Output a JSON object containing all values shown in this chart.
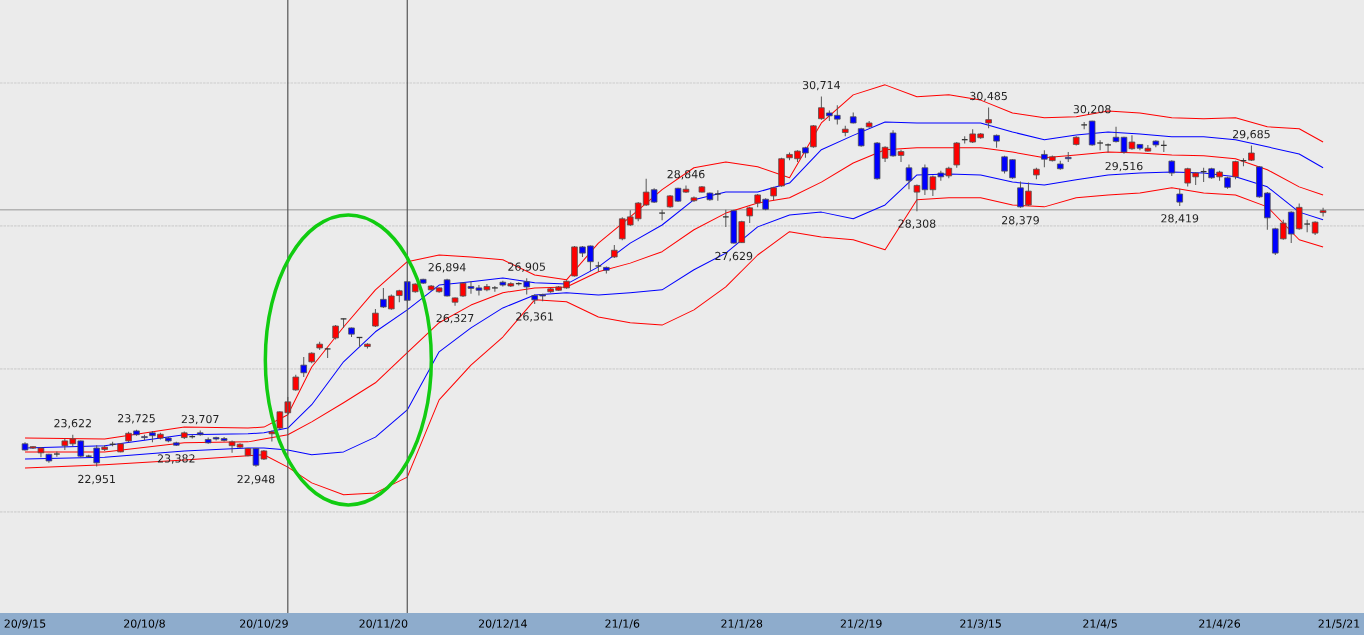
{
  "chart_data": {
    "type": "candlestick",
    "categories": [
      "20/9/15",
      null,
      null,
      null,
      null,
      null,
      null,
      null,
      null,
      null,
      null,
      null,
      null,
      null,
      null,
      "20/10/8",
      null,
      null,
      null,
      null,
      null,
      null,
      null,
      null,
      null,
      null,
      null,
      null,
      null,
      null,
      "20/10/29",
      null,
      null,
      null,
      null,
      null,
      null,
      null,
      null,
      null,
      null,
      null,
      null,
      null,
      null,
      "20/11/20",
      null,
      null,
      null,
      null,
      null,
      null,
      null,
      null,
      null,
      null,
      null,
      null,
      null,
      null,
      "20/12/14",
      null,
      null,
      null,
      null,
      null,
      null,
      null,
      null,
      null,
      null,
      null,
      null,
      null,
      null,
      "21/1/6",
      null,
      null,
      null,
      null,
      null,
      null,
      null,
      null,
      null,
      null,
      null,
      null,
      null,
      null,
      "21/1/28",
      null,
      null,
      null,
      null,
      null,
      null,
      null,
      null,
      null,
      null,
      null,
      null,
      null,
      null,
      "21/2/19",
      null,
      null,
      null,
      null,
      null,
      null,
      null,
      null,
      null,
      null,
      null,
      null,
      null,
      null,
      "21/3/15",
      null,
      null,
      null,
      null,
      null,
      null,
      null,
      null,
      null,
      null,
      null,
      null,
      null,
      null,
      "21/4/5",
      null,
      null,
      null,
      null,
      null,
      null,
      null,
      null,
      null,
      null,
      null,
      null,
      null,
      null,
      "21/4/26",
      null,
      null,
      null,
      null,
      null,
      null,
      null,
      null,
      null,
      null,
      null,
      null,
      null,
      null,
      "21/5/21"
    ],
    "ohlc": [
      [
        23430,
        23460,
        23290,
        23300
      ],
      [
        23340,
        23380,
        23320,
        23370
      ],
      [
        23240,
        23360,
        23150,
        23340
      ],
      [
        23210,
        23220,
        23030,
        23070
      ],
      [
        23215,
        23270,
        23160,
        23215
      ],
      [
        23390,
        23540,
        23300,
        23490
      ],
      [
        23430,
        23622,
        23380,
        23530
      ],
      [
        23490,
        23500,
        23150,
        23170
      ],
      [
        23170,
        23200,
        23150,
        23170
      ],
      [
        23340,
        23400,
        22951,
        23030
      ],
      [
        23310,
        23400,
        23280,
        23360
      ],
      [
        23420,
        23470,
        23380,
        23420
      ],
      [
        23260,
        23440,
        23250,
        23430
      ],
      [
        23490,
        23680,
        23460,
        23650
      ],
      [
        23700,
        23725,
        23600,
        23620
      ],
      [
        23580,
        23620,
        23510,
        23560
      ],
      [
        23660,
        23700,
        23460,
        23600
      ],
      [
        23550,
        23660,
        23520,
        23630
      ],
      [
        23550,
        23570,
        23460,
        23490
      ],
      [
        23450,
        23470,
        23382,
        23400
      ],
      [
        23560,
        23690,
        23530,
        23660
      ],
      [
        23580,
        23620,
        23540,
        23580
      ],
      [
        23660,
        23707,
        23600,
        23620
      ],
      [
        23520,
        23560,
        23430,
        23450
      ],
      [
        23560,
        23580,
        23500,
        23530
      ],
      [
        23540,
        23570,
        23480,
        23500
      ],
      [
        23390,
        23500,
        23240,
        23470
      ],
      [
        23360,
        23440,
        23330,
        23420
      ],
      [
        23180,
        23340,
        23170,
        23330
      ],
      [
        23330,
        23340,
        22948,
        22980
      ],
      [
        23110,
        23300,
        23090,
        23280
      ],
      [
        23640,
        23710,
        23480,
        23680
      ],
      [
        23760,
        24110,
        23740,
        24100
      ],
      [
        24080,
        24410,
        24060,
        24310
      ],
      [
        24560,
        24880,
        24540,
        24830
      ],
      [
        25080,
        25250,
        24830,
        24920
      ],
      [
        25150,
        25350,
        25120,
        25330
      ],
      [
        25440,
        25570,
        25400,
        25520
      ],
      [
        25420,
        25440,
        25230,
        25420
      ],
      [
        25650,
        25920,
        25620,
        25900
      ],
      [
        26050,
        26060,
        25860,
        26050
      ],
      [
        25860,
        25870,
        25670,
        25730
      ],
      [
        25660,
        25670,
        25460,
        25660
      ],
      [
        25470,
        25540,
        25430,
        25520
      ],
      [
        25900,
        26260,
        25880,
        26170
      ],
      [
        26460,
        26700,
        26280,
        26300
      ],
      [
        26260,
        26560,
        26240,
        26530
      ],
      [
        26540,
        26660,
        26400,
        26640
      ],
      [
        26830,
        26850,
        26420,
        26440
      ],
      [
        26620,
        26800,
        26600,
        26780
      ],
      [
        26880,
        26890,
        26780,
        26800
      ],
      [
        26660,
        26760,
        26640,
        26740
      ],
      [
        26620,
        26710,
        26600,
        26700
      ],
      [
        26870,
        26894,
        26520,
        26530
      ],
      [
        26400,
        26500,
        26327,
        26490
      ],
      [
        26530,
        26820,
        26510,
        26800
      ],
      [
        26730,
        26840,
        26580,
        26690
      ],
      [
        26700,
        26760,
        26540,
        26650
      ],
      [
        26660,
        26780,
        26630,
        26730
      ],
      [
        26700,
        26740,
        26620,
        26700
      ],
      [
        26820,
        26850,
        26730,
        26760
      ],
      [
        26740,
        26820,
        26720,
        26790
      ],
      [
        26790,
        26820,
        26750,
        26790
      ],
      [
        26830,
        26905,
        26560,
        26720
      ],
      [
        26540,
        26560,
        26361,
        26450
      ],
      [
        26560,
        26580,
        26420,
        26530
      ],
      [
        26620,
        26700,
        26600,
        26680
      ],
      [
        26650,
        26740,
        26640,
        26720
      ],
      [
        26700,
        26860,
        26680,
        26840
      ],
      [
        26950,
        27580,
        26940,
        27560
      ],
      [
        27560,
        27580,
        27350,
        27430
      ],
      [
        27580,
        27590,
        27050,
        27250
      ],
      [
        27160,
        27250,
        27040,
        27160
      ],
      [
        27130,
        27150,
        27000,
        27070
      ],
      [
        27350,
        27600,
        27330,
        27490
      ],
      [
        27730,
        28180,
        27700,
        28150
      ],
      [
        28020,
        28330,
        28000,
        28190
      ],
      [
        28150,
        28500,
        28100,
        28480
      ],
      [
        28440,
        28990,
        28420,
        28710
      ],
      [
        28760,
        28790,
        28480,
        28500
      ],
      [
        28270,
        28340,
        28120,
        28270
      ],
      [
        28400,
        28650,
        28380,
        28630
      ],
      [
        28790,
        28800,
        28500,
        28520
      ],
      [
        28710,
        28846,
        28690,
        28770
      ],
      [
        28530,
        28620,
        28500,
        28590
      ],
      [
        28710,
        28840,
        28700,
        28820
      ],
      [
        28690,
        28700,
        28530,
        28550
      ],
      [
        28670,
        28750,
        28530,
        28670
      ],
      [
        28190,
        28340,
        27980,
        28190
      ],
      [
        28320,
        28340,
        27629,
        27640
      ],
      [
        27650,
        28110,
        27640,
        28090
      ],
      [
        28210,
        28400,
        28060,
        28380
      ],
      [
        28480,
        28670,
        28390,
        28650
      ],
      [
        28560,
        28580,
        28330,
        28350
      ],
      [
        28630,
        28820,
        28540,
        28800
      ],
      [
        28840,
        29430,
        28820,
        29410
      ],
      [
        29430,
        29540,
        29380,
        29500
      ],
      [
        29410,
        29590,
        29340,
        29570
      ],
      [
        29640,
        29660,
        29430,
        29530
      ],
      [
        29660,
        30120,
        29640,
        30100
      ],
      [
        30250,
        30714,
        30230,
        30480
      ],
      [
        30370,
        30420,
        30200,
        30310
      ],
      [
        30320,
        30530,
        30130,
        30240
      ],
      [
        29960,
        30100,
        29880,
        30030
      ],
      [
        30290,
        30380,
        30150,
        30160
      ],
      [
        30040,
        30060,
        29660,
        29680
      ],
      [
        30080,
        30200,
        30060,
        30160
      ],
      [
        29740,
        29760,
        28970,
        28990
      ],
      [
        29420,
        29670,
        29340,
        29650
      ],
      [
        29950,
        30010,
        29450,
        29470
      ],
      [
        29480,
        29600,
        29340,
        29560
      ],
      [
        29220,
        29290,
        28770,
        28950
      ],
      [
        28710,
        28870,
        28308,
        28850
      ],
      [
        29220,
        29290,
        28650,
        28760
      ],
      [
        28760,
        29060,
        28630,
        29030
      ],
      [
        29110,
        29160,
        28950,
        29030
      ],
      [
        29050,
        29240,
        29000,
        29210
      ],
      [
        29280,
        29760,
        29220,
        29740
      ],
      [
        29810,
        29880,
        29730,
        29810
      ],
      [
        29760,
        30030,
        29740,
        29930
      ],
      [
        29850,
        29950,
        29830,
        29930
      ],
      [
        30160,
        30485,
        30050,
        30230
      ],
      [
        29900,
        29920,
        29640,
        29780
      ],
      [
        29450,
        29470,
        29100,
        29150
      ],
      [
        29390,
        29400,
        28990,
        29010
      ],
      [
        28800,
        28930,
        28379,
        28400
      ],
      [
        28440,
        28910,
        28420,
        28730
      ],
      [
        29070,
        29220,
        28980,
        29190
      ],
      [
        29500,
        29590,
        29230,
        29400
      ],
      [
        29370,
        29480,
        29350,
        29450
      ],
      [
        29300,
        29370,
        29180,
        29200
      ],
      [
        29440,
        29550,
        29340,
        29410
      ],
      [
        29710,
        29880,
        29690,
        29860
      ],
      [
        30120,
        30180,
        30030,
        30120
      ],
      [
        30200,
        30208,
        29680,
        29700
      ],
      [
        29740,
        29800,
        29590,
        29740
      ],
      [
        29700,
        29730,
        29540,
        29700
      ],
      [
        29860,
        30080,
        29750,
        29770
      ],
      [
        29860,
        29870,
        29516,
        29550
      ],
      [
        29620,
        29900,
        29600,
        29760
      ],
      [
        29710,
        29720,
        29590,
        29630
      ],
      [
        29570,
        29700,
        29560,
        29630
      ],
      [
        29780,
        29800,
        29650,
        29700
      ],
      [
        29690,
        29790,
        29550,
        29690
      ],
      [
        29360,
        29380,
        29050,
        29110
      ],
      [
        28670,
        28780,
        28419,
        28500
      ],
      [
        28900,
        29220,
        28830,
        29200
      ],
      [
        29030,
        29130,
        28860,
        29110
      ],
      [
        29140,
        29220,
        28920,
        29140
      ],
      [
        29200,
        29220,
        28990,
        29010
      ],
      [
        29030,
        29160,
        28950,
        29130
      ],
      [
        29010,
        29030,
        28780,
        28810
      ],
      [
        29030,
        29370,
        28980,
        29350
      ],
      [
        29370,
        29420,
        29250,
        29370
      ],
      [
        29380,
        29685,
        29360,
        29530
      ],
      [
        29240,
        29260,
        28590,
        28610
      ],
      [
        28690,
        28710,
        27920,
        28170
      ],
      [
        27940,
        27960,
        27390,
        27430
      ],
      [
        27730,
        28130,
        27710,
        28060
      ],
      [
        28290,
        28310,
        27640,
        27830
      ],
      [
        27940,
        28470,
        27920,
        28390
      ],
      [
        28040,
        28130,
        27870,
        28040
      ],
      [
        27850,
        28100,
        27810,
        28080
      ],
      [
        28280,
        28380,
        28200,
        28320
      ],
      null,
      null
    ],
    "colors": [
      "#0000ff",
      "#ff0000",
      "#ff0000",
      "#0000ff",
      "#333333",
      "#ff0000",
      "#ff0000",
      "#0000ff",
      "#333333",
      "#0000ff",
      "#ff0000",
      "#333333",
      "#ff0000",
      "#ff0000",
      "#0000ff",
      "#0000ff",
      "#0000ff",
      "#ff0000",
      "#0000ff",
      "#0000ff",
      "#ff0000",
      "#333333",
      "#0000ff",
      "#0000ff",
      "#0000ff",
      "#0000ff",
      "#ff0000",
      "#ff0000",
      "#ff0000",
      "#0000ff",
      "#ff0000",
      "#ff0000",
      "#ff0000",
      "#ff0000",
      "#ff0000",
      "#0000ff",
      "#ff0000",
      "#ff0000",
      "#333333",
      "#ff0000",
      "#333333",
      "#0000ff",
      "#333333",
      "#ff0000",
      "#ff0000",
      "#0000ff",
      "#ff0000",
      "#ff0000",
      "#0000ff",
      "#ff0000",
      "#0000ff",
      "#ff0000",
      "#ff0000",
      "#0000ff",
      "#ff0000",
      "#ff0000",
      "#0000ff",
      "#0000ff",
      "#ff0000",
      "#333333",
      "#0000ff",
      "#ff0000",
      "#333333",
      "#0000ff",
      "#0000ff",
      "#0000ff",
      "#ff0000",
      "#ff0000",
      "#ff0000",
      "#ff0000",
      "#0000ff",
      "#0000ff",
      "#333333",
      "#0000ff",
      "#ff0000",
      "#ff0000",
      "#ff0000",
      "#ff0000",
      "#ff0000",
      "#0000ff",
      "#333333",
      "#ff0000",
      "#0000ff",
      "#ff0000",
      "#ff0000",
      "#ff0000",
      "#0000ff",
      "#333333",
      "#333333",
      "#0000ff",
      "#ff0000",
      "#ff0000",
      "#ff0000",
      "#0000ff",
      "#ff0000",
      "#ff0000",
      "#ff0000",
      "#ff0000",
      "#0000ff",
      "#ff0000",
      "#ff0000",
      "#0000ff",
      "#0000ff",
      "#ff0000",
      "#0000ff",
      "#0000ff",
      "#ff0000",
      "#0000ff",
      "#ff0000",
      "#0000ff",
      "#ff0000",
      "#0000ff",
      "#ff0000",
      "#0000ff",
      "#ff0000",
      "#0000ff",
      "#ff0000",
      "#ff0000",
      "#333333",
      "#ff0000",
      "#ff0000",
      "#ff0000",
      "#0000ff",
      "#0000ff",
      "#0000ff",
      "#0000ff",
      "#ff0000",
      "#ff0000",
      "#0000ff",
      "#ff0000",
      "#0000ff",
      "#0000ff",
      "#ff0000",
      "#333333",
      "#0000ff",
      "#333333",
      "#333333",
      "#0000ff",
      "#0000ff",
      "#ff0000",
      "#0000ff",
      "#ff0000",
      "#0000ff",
      "#333333",
      "#0000ff",
      "#0000ff",
      "#ff0000",
      "#ff0000",
      "#333333",
      "#0000ff",
      "#ff0000",
      "#0000ff",
      "#ff0000",
      "#333333",
      "#ff0000",
      "#0000ff",
      "#0000ff",
      "#0000ff",
      "#ff0000",
      "#0000ff",
      "#ff0000",
      "#333333",
      "#ff0000",
      "#ff0000",
      null,
      null
    ],
    "series": [
      {
        "type": "line",
        "color": "#ff0000",
        "values": [
          23550,
          null,
          null,
          null,
          null,
          null,
          null,
          null,
          null,
          null,
          23530,
          null,
          null,
          null,
          null,
          null,
          null,
          null,
          null,
          null,
          23780,
          null,
          null,
          null,
          null,
          null,
          null,
          null,
          23760,
          null,
          23780,
          null,
          null,
          24040,
          null,
          null,
          25040,
          null,
          null,
          null,
          25880,
          null,
          null,
          null,
          26660,
          null,
          null,
          null,
          27250,
          null,
          null,
          null,
          27390,
          null,
          null,
          null,
          27350,
          null,
          null,
          null,
          27290,
          null,
          null,
          null,
          26970,
          null,
          null,
          null,
          26870,
          null,
          null,
          null,
          27640,
          null,
          null,
          null,
          28190,
          null,
          null,
          null,
          28760,
          null,
          null,
          null,
          29220,
          null,
          null,
          null,
          29340,
          null,
          null,
          null,
          29240,
          null,
          null,
          null,
          29010,
          null,
          null,
          null,
          30160,
          null,
          null,
          null,
          30750,
          null,
          null,
          null,
          30960,
          null,
          null,
          null,
          30710,
          null,
          null,
          null,
          30750,
          null,
          null,
          null,
          30640,
          null,
          null,
          null,
          30370,
          null,
          null,
          null,
          30270,
          null,
          null,
          null,
          30290,
          null,
          null,
          null,
          30410,
          null,
          null,
          null,
          30370,
          null,
          null,
          null,
          30270,
          null,
          null,
          null,
          30250,
          null,
          null,
          null,
          30270,
          null,
          null,
          null,
          30080,
          null,
          null,
          null,
          30040,
          null,
          null,
          29760,
          null,
          null
        ]
      },
      {
        "type": "line",
        "color": "#0000ff",
        "values": [
          23340,
          null,
          null,
          null,
          null,
          null,
          null,
          null,
          null,
          null,
          23390,
          null,
          null,
          null,
          null,
          null,
          null,
          null,
          null,
          null,
          23620,
          null,
          null,
          null,
          null,
          null,
          null,
          null,
          23640,
          null,
          23660,
          null,
          null,
          23760,
          null,
          null,
          24250,
          null,
          null,
          null,
          25150,
          null,
          null,
          null,
          25780,
          null,
          null,
          null,
          26240,
          null,
          null,
          null,
          26760,
          null,
          null,
          null,
          26830,
          null,
          null,
          null,
          26910,
          null,
          null,
          null,
          26810,
          null,
          null,
          null,
          26780,
          null,
          null,
          null,
          27140,
          null,
          null,
          null,
          27640,
          null,
          null,
          null,
          28020,
          null,
          null,
          null,
          28550,
          null,
          null,
          null,
          28710,
          null,
          null,
          null,
          28710,
          null,
          null,
          null,
          28900,
          null,
          null,
          null,
          29600,
          null,
          null,
          null,
          29900,
          null,
          null,
          null,
          30180,
          null,
          null,
          null,
          30160,
          null,
          null,
          null,
          30160,
          null,
          null,
          null,
          30160,
          null,
          null,
          null,
          29970,
          null,
          null,
          null,
          29810,
          null,
          null,
          null,
          29910,
          null,
          null,
          null,
          29970,
          null,
          null,
          null,
          29930,
          null,
          null,
          null,
          29870,
          null,
          null,
          null,
          29870,
          null,
          null,
          null,
          29810,
          null,
          null,
          null,
          29660,
          null,
          null,
          null,
          29510,
          null,
          null,
          29220,
          null,
          null
        ]
      },
      {
        "type": "line",
        "color": "#ff0000",
        "values": [
          23260,
          null,
          null,
          null,
          null,
          null,
          null,
          null,
          null,
          null,
          23260,
          null,
          null,
          null,
          null,
          null,
          null,
          null,
          null,
          null,
          23450,
          null,
          null,
          null,
          null,
          null,
          null,
          null,
          23470,
          null,
          23530,
          null,
          null,
          23620,
          null,
          null,
          23890,
          null,
          null,
          null,
          24290,
          null,
          null,
          null,
          24710,
          null,
          null,
          null,
          25340,
          null,
          null,
          null,
          25970,
          null,
          null,
          null,
          26340,
          null,
          null,
          null,
          26600,
          null,
          null,
          null,
          26700,
          null,
          null,
          null,
          26720,
          null,
          null,
          null,
          27040,
          null,
          null,
          null,
          27220,
          null,
          null,
          null,
          27460,
          null,
          null,
          null,
          27920,
          null,
          null,
          null,
          28270,
          null,
          null,
          null,
          28480,
          null,
          null,
          null,
          28590,
          null,
          null,
          null,
          28920,
          null,
          null,
          null,
          29320,
          null,
          null,
          null,
          29600,
          null,
          null,
          null,
          29640,
          null,
          null,
          null,
          29640,
          null,
          null,
          null,
          29640,
          null,
          null,
          null,
          29550,
          null,
          null,
          null,
          29430,
          null,
          null,
          null,
          29490,
          null,
          null,
          null,
          29550,
          null,
          null,
          null,
          29530,
          null,
          null,
          null,
          29490,
          null,
          null,
          null,
          29470,
          null,
          null,
          null,
          29410,
          null,
          null,
          null,
          29180,
          null,
          null,
          null,
          28820,
          null,
          null,
          28650,
          null,
          null
        ]
      },
      {
        "type": "line",
        "color": "#0000ff",
        "values": [
          23110,
          null,
          null,
          null,
          null,
          null,
          null,
          null,
          null,
          null,
          23150,
          null,
          null,
          null,
          null,
          null,
          null,
          null,
          null,
          null,
          23280,
          null,
          null,
          null,
          null,
          null,
          null,
          null,
          23340,
          null,
          23340,
          null,
          null,
          23300,
          null,
          null,
          23200,
          null,
          null,
          null,
          23260,
          null,
          null,
          null,
          23570,
          null,
          null,
          null,
          24140,
          null,
          null,
          null,
          25360,
          null,
          null,
          null,
          25860,
          null,
          null,
          null,
          26280,
          null,
          null,
          null,
          26550,
          null,
          null,
          null,
          26600,
          null,
          null,
          null,
          26550,
          null,
          null,
          null,
          26600,
          null,
          null,
          null,
          26660,
          null,
          null,
          null,
          27080,
          null,
          null,
          null,
          27430,
          null,
          null,
          null,
          27980,
          null,
          null,
          null,
          28230,
          null,
          null,
          null,
          28290,
          null,
          null,
          null,
          28150,
          null,
          null,
          null,
          28440,
          null,
          null,
          null,
          29070,
          null,
          null,
          null,
          29090,
          null,
          null,
          null,
          29070,
          null,
          null,
          null,
          28920,
          null,
          null,
          null,
          28860,
          null,
          null,
          null,
          28970,
          null,
          null,
          null,
          29070,
          null,
          null,
          null,
          29110,
          null,
          null,
          null,
          29130,
          null,
          null,
          null,
          29110,
          null,
          null,
          null,
          29030,
          null,
          null,
          null,
          28820,
          null,
          null,
          null,
          28290,
          null,
          null,
          28130,
          null,
          null
        ]
      },
      {
        "type": "line",
        "color": "#ff0000",
        "values": [
          22920,
          null,
          null,
          null,
          null,
          null,
          null,
          null,
          null,
          null,
          22990,
          null,
          null,
          null,
          null,
          null,
          null,
          null,
          null,
          null,
          23090,
          null,
          null,
          null,
          null,
          null,
          null,
          null,
          23180,
          null,
          23200,
          null,
          null,
          22940,
          null,
          null,
          22610,
          null,
          null,
          null,
          22360,
          null,
          null,
          null,
          22400,
          null,
          null,
          null,
          22730,
          null,
          null,
          null,
          24350,
          null,
          null,
          null,
          25080,
          null,
          null,
          null,
          25670,
          null,
          null,
          null,
          26450,
          null,
          null,
          null,
          26410,
          null,
          null,
          null,
          26090,
          null,
          null,
          null,
          25970,
          null,
          null,
          null,
          25920,
          null,
          null,
          null,
          26240,
          null,
          null,
          null,
          26720,
          null,
          null,
          null,
          27390,
          null,
          null,
          null,
          27880,
          null,
          null,
          null,
          27770,
          null,
          null,
          null,
          27710,
          null,
          null,
          null,
          27500,
          null,
          null,
          null,
          28550,
          null,
          null,
          null,
          28590,
          null,
          null,
          null,
          28590,
          null,
          null,
          null,
          28440,
          null,
          null,
          null,
          28400,
          null,
          null,
          null,
          28590,
          null,
          null,
          null,
          28650,
          null,
          null,
          null,
          28690,
          null,
          null,
          null,
          28800,
          null,
          null,
          null,
          28690,
          null,
          null,
          null,
          28650,
          null,
          null,
          null,
          28400,
          null,
          null,
          null,
          27710,
          null,
          null,
          27560,
          null,
          null
        ]
      }
    ],
    "ylim": [
      19880,
      32740
    ],
    "yticks": [
      {
        "value": 22000,
        "label": null
      },
      {
        "value": 25000,
        "label": null
      },
      {
        "value": 28000,
        "label": null
      },
      {
        "value": 31000,
        "label": null
      }
    ],
    "grid": "y",
    "tick_labels": "x",
    "ref_lines": [
      {
        "axis": "y",
        "value": 28336,
        "color": "#a0a0a0"
      }
    ],
    "annotations": [
      {
        "text": "23,622",
        "y": 23622
      },
      {
        "text": "22,951",
        "y": 22951
      },
      {
        "text": "23,725",
        "y": 23725
      },
      {
        "text": "23,382",
        "y": 23382
      },
      {
        "text": "23,707",
        "y": 23707
      },
      {
        "text": "22,948",
        "y": 22948
      },
      {
        "text": "26,894",
        "y": 26894
      },
      {
        "text": "26,327",
        "y": 26327
      },
      {
        "text": "26,905",
        "y": 26905
      },
      {
        "text": "26,361",
        "y": 26361
      },
      {
        "text": "28,846",
        "y": 28846
      },
      {
        "text": "27,629",
        "y": 27629
      },
      {
        "text": "30,714",
        "y": 30714
      },
      {
        "text": "28,308",
        "y": 28308
      },
      {
        "text": "30,485",
        "y": 30485
      },
      {
        "text": "28,379",
        "y": 28379
      },
      {
        "text": "30,208",
        "y": 30208
      },
      {
        "text": "29,516",
        "y": 29516
      },
      {
        "text": "28,419",
        "y": 28419
      },
      {
        "text": "29,685",
        "y": 29685
      }
    ]
  }
}
